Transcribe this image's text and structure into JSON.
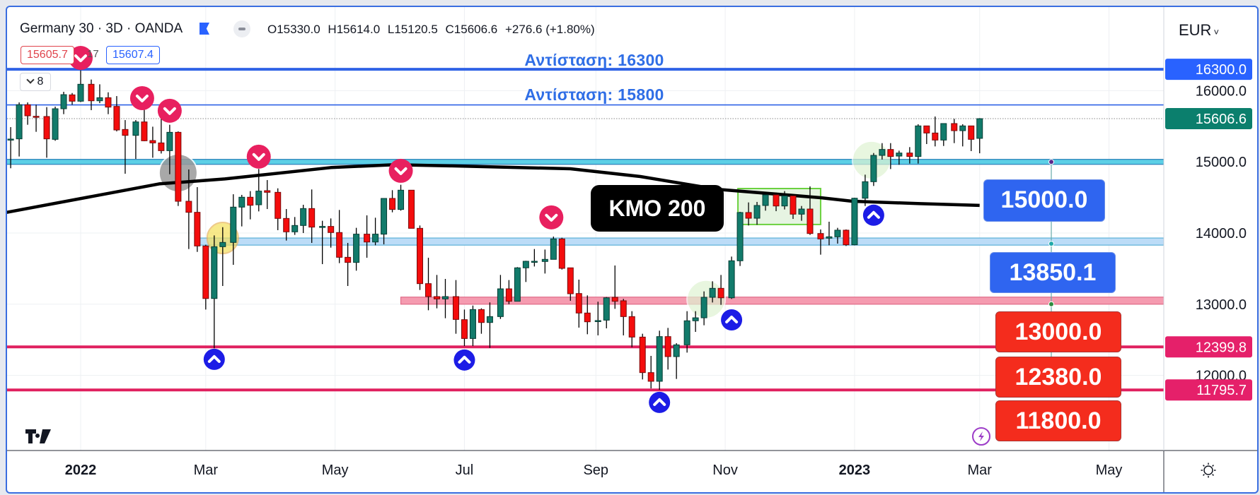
{
  "header": {
    "symbol_title": "Germany 30 · 3D · OANDA",
    "ohlc": {
      "open": "O15330.0",
      "high": "H15614.0",
      "low": "L15120.5",
      "close": "C15606.6",
      "change": "+276.6 (+1.80%)"
    },
    "bid": "15605.7",
    "spread": "17",
    "ask": "15607.4",
    "indicators_count": "8",
    "flag_color": "#2962ff"
  },
  "price_axis": {
    "currency": "EUR",
    "ticks": [
      "16000.0",
      "15000.0",
      "14000.0",
      "13000.0",
      "12000.0"
    ],
    "price_tags": [
      {
        "label": "16300.0",
        "value": 16300,
        "color": "#2962ff"
      },
      {
        "label": "15606.6",
        "value": 15606.6,
        "color": "#0b7f6d"
      },
      {
        "label": "12399.8",
        "value": 12399.8,
        "color": "#e5206a"
      },
      {
        "label": "11795.7",
        "value": 11795.7,
        "color": "#e5206a"
      }
    ]
  },
  "time_axis": {
    "labels": [
      {
        "label": "2022",
        "date": "2022-01-01",
        "bold": true
      },
      {
        "label": "Mar",
        "date": "2022-03-01",
        "bold": false
      },
      {
        "label": "May",
        "date": "2022-05-01",
        "bold": false
      },
      {
        "label": "Jul",
        "date": "2022-07-01",
        "bold": false
      },
      {
        "label": "Sep",
        "date": "2022-09-01",
        "bold": false
      },
      {
        "label": "Nov",
        "date": "2022-11-01",
        "bold": false
      },
      {
        "label": "2023",
        "date": "2023-01-01",
        "bold": true
      },
      {
        "label": "Mar",
        "date": "2023-03-01",
        "bold": false
      },
      {
        "label": "May",
        "date": "2023-05-01",
        "bold": false
      }
    ]
  },
  "annotations": {
    "resistance_16300": "Αντίσταση: 16300",
    "resistance_15800": "Αντίσταση: 15800",
    "ema_label": "ΚΜΟ 200",
    "level_boxes": [
      {
        "label": "15000.0",
        "color": "#2f65f0"
      },
      {
        "label": "13850.1",
        "color": "#2f65f0"
      },
      {
        "label": "13000.0",
        "color": "#f42c1d"
      },
      {
        "label": "12380.0",
        "color": "#f42c1d"
      },
      {
        "label": "11800.0",
        "color": "#f42c1d"
      }
    ]
  },
  "chart_data": {
    "type": "candlestick",
    "symbol": "Germany 30",
    "interval": "3D",
    "ylim": [
      11350,
      16600
    ],
    "xlim": [
      "2021-11-26",
      "2023-05-31"
    ],
    "grid": true,
    "up_color": "#127b6b",
    "down_color": "#f40d0d",
    "candle_fields": [
      "date",
      "open",
      "high",
      "low",
      "close"
    ],
    "candles": [
      [
        "2021-11-29",
        15320,
        15488,
        14910,
        15320
      ],
      [
        "2021-12-03",
        15323,
        15835,
        15075,
        15802
      ],
      [
        "2021-12-07",
        15802,
        15835,
        15521,
        15647
      ],
      [
        "2021-12-11",
        15640,
        15802,
        15422,
        15636
      ],
      [
        "2021-12-16",
        15637,
        15769,
        15058,
        15323
      ],
      [
        "2021-12-20",
        15316,
        15776,
        15296,
        15746
      ],
      [
        "2021-12-24",
        15746,
        15984,
        15670,
        15944
      ],
      [
        "2021-12-28",
        15941,
        15967,
        15802,
        15852
      ],
      [
        "2022-01-01",
        15852,
        16285,
        15840,
        16090
      ],
      [
        "2022-01-06",
        16090,
        16156,
        15726,
        15858
      ],
      [
        "2022-01-10",
        15858,
        16090,
        15825,
        15901
      ],
      [
        "2022-01-14",
        15901,
        15977,
        15670,
        15769
      ],
      [
        "2022-01-18",
        15779,
        15924,
        15428,
        15448
      ],
      [
        "2022-01-22",
        15455,
        15587,
        14833,
        15372
      ],
      [
        "2022-01-27",
        15372,
        15587,
        15041,
        15561
      ],
      [
        "2022-01-31",
        15561,
        15752,
        15290,
        15296
      ],
      [
        "2022-02-04",
        15299,
        15494,
        15058,
        15266
      ],
      [
        "2022-02-08",
        15266,
        15719,
        15117,
        15157
      ],
      [
        "2022-02-12",
        15157,
        15521,
        14826,
        15415
      ],
      [
        "2022-02-16",
        15415,
        15428,
        14380,
        14446
      ],
      [
        "2022-02-21",
        14446,
        14893,
        13775,
        14291
      ],
      [
        "2022-02-25",
        14291,
        14645,
        13735,
        13818
      ],
      [
        "2022-03-01",
        13818,
        13835,
        12925,
        13080
      ],
      [
        "2022-03-05",
        13080,
        13967,
        12380,
        13808
      ],
      [
        "2022-03-09",
        13808,
        14082,
        13256,
        13868
      ],
      [
        "2022-03-14",
        13868,
        14545,
        13553,
        14364
      ],
      [
        "2022-03-18",
        14364,
        14536,
        14093,
        14503
      ],
      [
        "2022-03-22",
        14503,
        14589,
        14192,
        14390
      ],
      [
        "2022-03-26",
        14397,
        14900,
        14304,
        14589
      ],
      [
        "2022-03-30",
        14595,
        14744,
        14337,
        14572
      ],
      [
        "2022-04-04",
        14572,
        14628,
        14040,
        14205
      ],
      [
        "2022-04-08",
        14205,
        14337,
        13894,
        14017
      ],
      [
        "2022-04-12",
        14017,
        14225,
        13974,
        14106
      ],
      [
        "2022-04-16",
        14106,
        14397,
        14000,
        14344
      ],
      [
        "2022-04-20",
        14344,
        14612,
        13861,
        14083
      ],
      [
        "2022-04-25",
        14093,
        14172,
        13563,
        14093
      ],
      [
        "2022-04-29",
        14093,
        14205,
        13795,
        14007
      ],
      [
        "2022-05-03",
        14007,
        14324,
        13577,
        13659
      ],
      [
        "2022-05-07",
        13659,
        13861,
        13256,
        13587
      ],
      [
        "2022-05-11",
        13587,
        14073,
        13471,
        13984
      ],
      [
        "2022-05-16",
        13984,
        14248,
        13653,
        13874
      ],
      [
        "2022-05-20",
        13874,
        14215,
        13828,
        13984
      ],
      [
        "2022-05-24",
        13984,
        14486,
        13841,
        14486
      ],
      [
        "2022-05-28",
        14486,
        14602,
        14291,
        14331
      ],
      [
        "2022-06-01",
        14331,
        14678,
        14314,
        14602
      ],
      [
        "2022-06-06",
        14602,
        14602,
        14066,
        14066
      ],
      [
        "2022-06-10",
        14066,
        14106,
        13200,
        13289
      ],
      [
        "2022-06-14",
        13289,
        13653,
        12915,
        13107
      ],
      [
        "2022-06-18",
        13107,
        13411,
        12942,
        13074
      ],
      [
        "2022-06-22",
        13074,
        13355,
        12803,
        13107
      ],
      [
        "2022-06-27",
        13107,
        13339,
        12585,
        12786
      ],
      [
        "2022-07-01",
        12783,
        12925,
        12412,
        12518
      ],
      [
        "2022-07-05",
        12518,
        12981,
        12412,
        12925
      ],
      [
        "2022-07-09",
        12925,
        12942,
        12585,
        12743
      ],
      [
        "2022-07-13",
        12743,
        13025,
        12386,
        12826
      ],
      [
        "2022-07-18",
        12826,
        13411,
        12793,
        13216
      ],
      [
        "2022-07-22",
        13216,
        13339,
        13001,
        13041
      ],
      [
        "2022-07-26",
        13041,
        13521,
        13041,
        13511
      ],
      [
        "2022-07-30",
        13511,
        13610,
        13312,
        13603
      ],
      [
        "2022-08-03",
        13603,
        13775,
        13530,
        13603
      ],
      [
        "2022-08-08",
        13600,
        13768,
        13431,
        13630
      ],
      [
        "2022-08-12",
        13630,
        13950,
        13630,
        13917
      ],
      [
        "2022-08-16",
        13917,
        13934,
        13487,
        13504
      ],
      [
        "2022-08-20",
        13511,
        13511,
        13048,
        13147
      ],
      [
        "2022-08-24",
        13150,
        13345,
        12671,
        12876
      ],
      [
        "2022-08-28",
        12876,
        13124,
        12578,
        12753
      ],
      [
        "2022-09-02",
        12770,
        13035,
        12562,
        12770
      ],
      [
        "2022-09-06",
        12776,
        13100,
        12661,
        13090
      ],
      [
        "2022-09-10",
        13097,
        13544,
        12935,
        13041
      ],
      [
        "2022-09-14",
        13048,
        13074,
        12562,
        12826
      ],
      [
        "2022-09-18",
        12826,
        12902,
        12396,
        12538
      ],
      [
        "2022-09-23",
        12538,
        12585,
        11943,
        12039
      ],
      [
        "2022-09-27",
        12039,
        12274,
        11817,
        11917
      ],
      [
        "2022-10-01",
        11917,
        12628,
        11797,
        12545
      ],
      [
        "2022-10-05",
        12545,
        12667,
        12082,
        12264
      ],
      [
        "2022-10-09",
        12264,
        12452,
        11950,
        12429
      ],
      [
        "2022-10-14",
        12429,
        12902,
        12320,
        12767
      ],
      [
        "2022-10-18",
        12767,
        12902,
        12611,
        12809
      ],
      [
        "2022-10-22",
        12809,
        13180,
        12704,
        13097
      ],
      [
        "2022-10-26",
        13097,
        13322,
        13024,
        13223
      ],
      [
        "2022-10-30",
        13223,
        13411,
        12991,
        13090
      ],
      [
        "2022-11-04",
        13090,
        13669,
        13074,
        13610
      ],
      [
        "2022-11-08",
        13610,
        14298,
        13537,
        14288
      ],
      [
        "2022-11-12",
        14288,
        14430,
        14106,
        14208
      ],
      [
        "2022-11-16",
        14208,
        14437,
        14116,
        14387
      ],
      [
        "2022-11-20",
        14387,
        14569,
        14314,
        14536
      ],
      [
        "2022-11-25",
        14536,
        14569,
        14307,
        14380
      ],
      [
        "2022-11-29",
        14380,
        14589,
        14331,
        14522
      ],
      [
        "2022-12-03",
        14522,
        14546,
        14198,
        14265
      ],
      [
        "2022-12-07",
        14265,
        14380,
        14172,
        14337
      ],
      [
        "2022-12-11",
        14337,
        14655,
        13974,
        13993
      ],
      [
        "2022-12-16",
        13993,
        14050,
        13696,
        13917
      ],
      [
        "2022-12-20",
        13927,
        14159,
        13828,
        13947
      ],
      [
        "2022-12-24",
        13947,
        14073,
        13851,
        14040
      ],
      [
        "2022-12-28",
        14040,
        14050,
        13818,
        13835
      ],
      [
        "2023-01-01",
        13835,
        14496,
        13828,
        14489
      ],
      [
        "2023-01-06",
        14489,
        14820,
        14380,
        14721
      ],
      [
        "2023-01-10",
        14721,
        15124,
        14661,
        15091
      ],
      [
        "2023-01-14",
        15091,
        15263,
        15032,
        15174
      ],
      [
        "2023-01-18",
        15174,
        15263,
        14899,
        15075
      ],
      [
        "2023-01-22",
        15081,
        15157,
        14959,
        15124
      ],
      [
        "2023-01-27",
        15124,
        15207,
        14976,
        15075
      ],
      [
        "2023-01-31",
        15075,
        15528,
        14976,
        15505
      ],
      [
        "2023-02-04",
        15505,
        15505,
        15250,
        15405
      ],
      [
        "2023-02-08",
        15405,
        15637,
        15217,
        15306
      ],
      [
        "2023-02-12",
        15306,
        15538,
        15223,
        15538
      ],
      [
        "2023-02-17",
        15538,
        15604,
        15263,
        15438
      ],
      [
        "2023-02-21",
        15438,
        15528,
        15217,
        15505
      ],
      [
        "2023-02-25",
        15505,
        15505,
        15151,
        15316
      ],
      [
        "2023-03-01",
        15330,
        15614,
        15120.5,
        15606.6
      ]
    ],
    "ema_200": {
      "label": "ΚΜΟ 200",
      "color": "#000000",
      "points": [
        [
          "2021-11-27",
          14290
        ],
        [
          "2022-02-07",
          14690
        ],
        [
          "2022-03-10",
          14760
        ],
        [
          "2022-04-29",
          14920
        ],
        [
          "2022-05-29",
          14960
        ],
        [
          "2022-06-25",
          14943
        ],
        [
          "2022-08-20",
          14903
        ],
        [
          "2022-09-22",
          14794
        ],
        [
          "2022-10-28",
          14615
        ],
        [
          "2022-12-16",
          14496
        ],
        [
          "2022-12-31",
          14446
        ],
        [
          "2023-02-01",
          14413
        ],
        [
          "2023-03-01",
          14388
        ]
      ]
    },
    "last_price": 15606.6,
    "horizontal_levels": [
      {
        "kind": "line",
        "price": 16300,
        "color": "#2f62e6",
        "from": "2021-11-26"
      },
      {
        "kind": "line",
        "price": 15800,
        "color": "#2f62e6",
        "from": "2021-11-26"
      },
      {
        "kind": "zone",
        "low": 14965,
        "high": 15035,
        "color": "#5ccfe6",
        "from": "2021-11-26"
      },
      {
        "kind": "zone",
        "low": 13830,
        "high": 13930,
        "color": "#bcdcf7",
        "from": "2022-02-26"
      },
      {
        "kind": "zone",
        "low": 13000,
        "high": 13100,
        "color": "#f59bb0",
        "from": "2022-06-01"
      },
      {
        "kind": "line",
        "price": 12399.8,
        "color": "#e0205f",
        "from": "2021-11-26"
      },
      {
        "kind": "line",
        "price": 11795.7,
        "color": "#e0205f",
        "from": "2021-11-26"
      }
    ],
    "sell_signals": [
      [
        "2022-01-01",
        16460
      ],
      [
        "2022-01-30",
        15895
      ],
      [
        "2022-02-12",
        15718
      ],
      [
        "2022-03-26",
        15073
      ],
      [
        "2022-06-01",
        14874
      ],
      [
        "2022-08-11",
        14220
      ]
    ],
    "buy_signals": [
      [
        "2022-03-05",
        12225
      ],
      [
        "2022-07-01",
        12216
      ],
      [
        "2022-10-01",
        11620
      ],
      [
        "2022-11-04",
        12780
      ],
      [
        "2023-01-10",
        14250
      ]
    ],
    "highlight_circles": [
      {
        "date": "2022-02-16",
        "price": 14843,
        "color": "#9a9a9a"
      },
      {
        "date": "2022-03-09",
        "price": 13930,
        "color": "#f4e05a"
      },
      {
        "date": "2022-10-23",
        "price": 13070,
        "color": "#dff3d2"
      },
      {
        "date": "2023-01-09",
        "price": 15023,
        "color": "#dff3d2"
      }
    ],
    "consolidation_box": {
      "from": "2022-11-07",
      "to": "2022-12-16",
      "high": 14625,
      "low": 14120,
      "color": "#6bd13f"
    }
  }
}
